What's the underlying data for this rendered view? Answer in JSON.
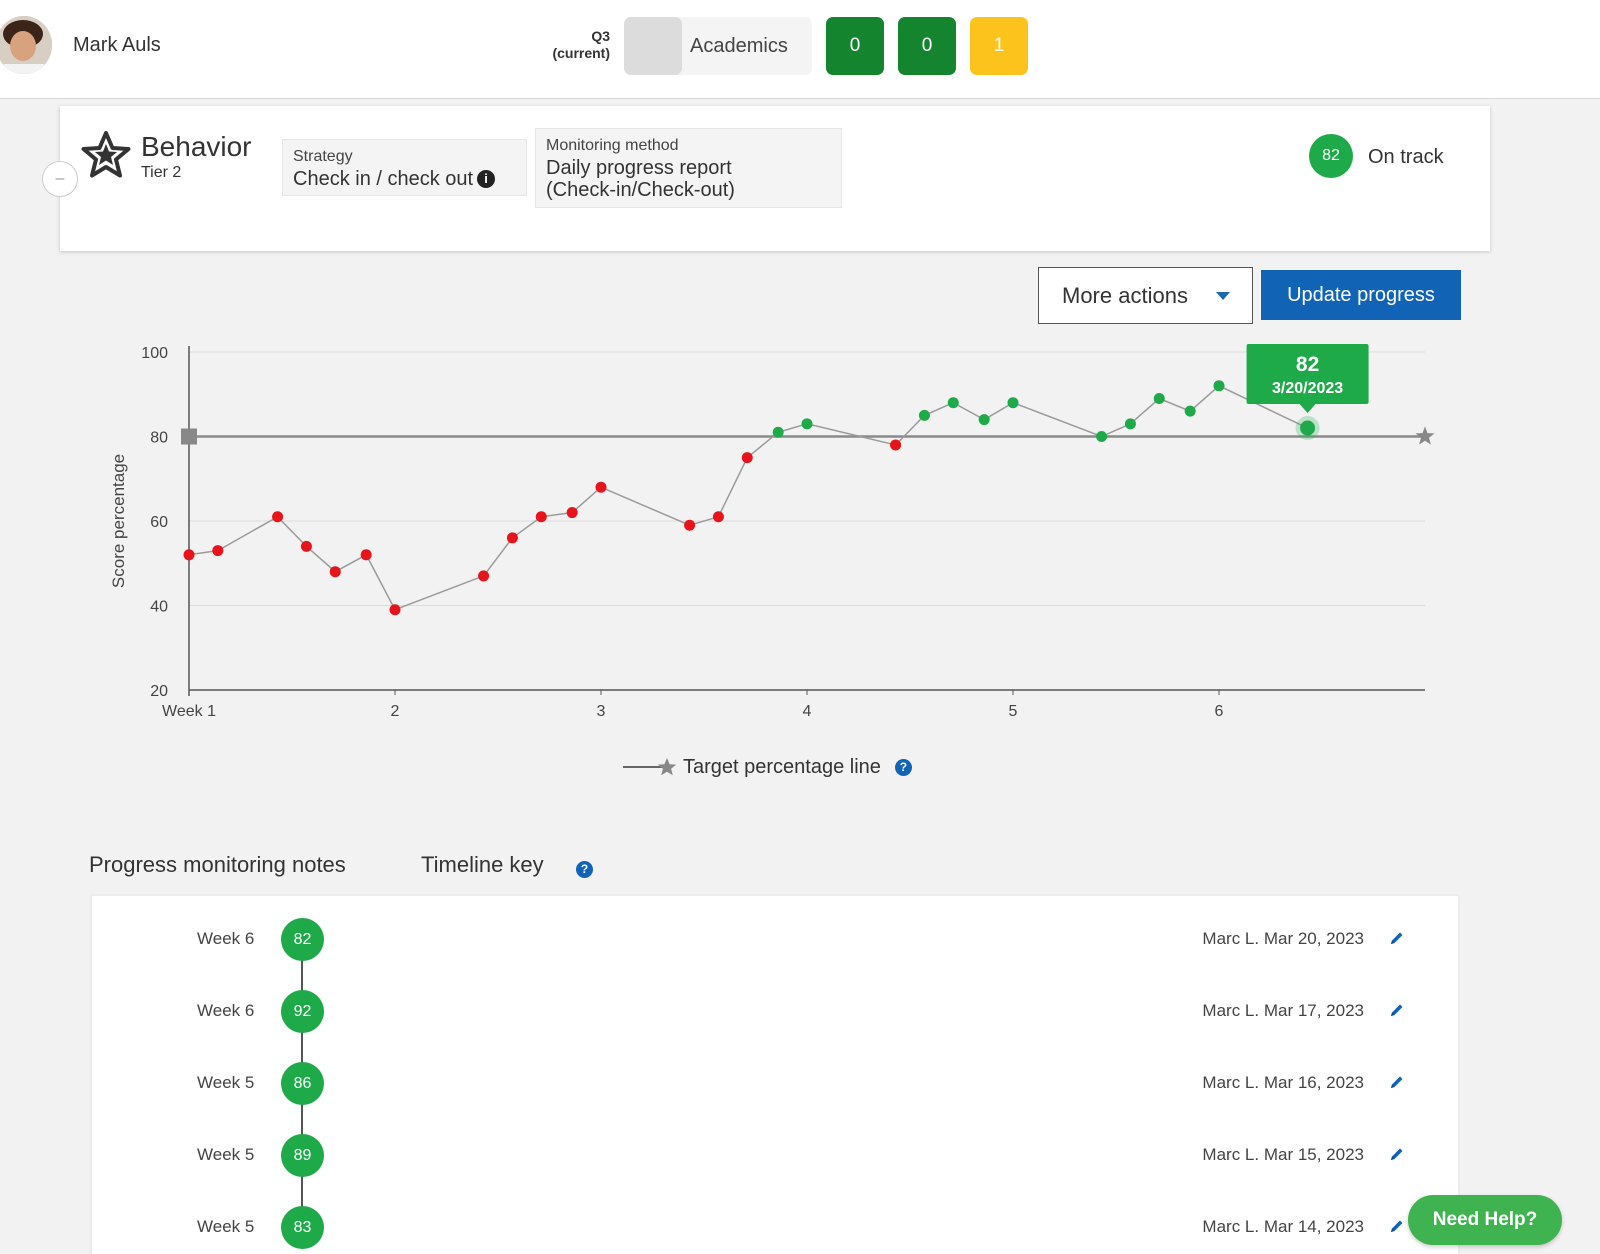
{
  "header": {
    "student_name": "Mark Auls",
    "quarter_line1": "Q3",
    "quarter_line2": "(current)",
    "academics_label": "Academics",
    "counts": [
      {
        "value": "0",
        "color": "#15842f"
      },
      {
        "value": "0",
        "color": "#15842f"
      },
      {
        "value": "1",
        "color": "#fbc31c"
      }
    ]
  },
  "intervention": {
    "collapse_label": "–",
    "title": "Behavior",
    "tier": "Tier 2",
    "strategy_caption": "Strategy",
    "strategy_value": "Check in / check out",
    "info_glyph": "i",
    "monitoring_caption": "Monitoring method",
    "monitoring_line1": "Daily progress report",
    "monitoring_line2": "(Check-in/Check-out)",
    "status_score": "82",
    "status_label": "On track"
  },
  "actions": {
    "more_actions": "More actions",
    "update_progress": "Update progress"
  },
  "chart_data": {
    "type": "line",
    "ylabel": "Score percentage",
    "xlabel": "",
    "ylim": [
      20,
      100
    ],
    "y_ticks": [
      "20",
      "40",
      "60",
      "80",
      "100"
    ],
    "x_ticks": [
      {
        "x": 1,
        "label": "Week 1"
      },
      {
        "x": 2,
        "label": "2"
      },
      {
        "x": 3,
        "label": "3"
      },
      {
        "x": 4,
        "label": "4"
      },
      {
        "x": 5,
        "label": "5"
      },
      {
        "x": 6,
        "label": "6"
      }
    ],
    "xlim": [
      1,
      7
    ],
    "target": 80,
    "grid": true,
    "on_track_color": "#1faa4a",
    "off_track_color": "#e8141b",
    "points": [
      {
        "x": 1.0,
        "y": 52
      },
      {
        "x": 1.14,
        "y": 53
      },
      {
        "x": 1.43,
        "y": 61
      },
      {
        "x": 1.57,
        "y": 54
      },
      {
        "x": 1.71,
        "y": 48
      },
      {
        "x": 1.86,
        "y": 52
      },
      {
        "x": 2.0,
        "y": 39
      },
      {
        "x": 2.43,
        "y": 47
      },
      {
        "x": 2.57,
        "y": 56
      },
      {
        "x": 2.71,
        "y": 61
      },
      {
        "x": 2.86,
        "y": 62
      },
      {
        "x": 3.0,
        "y": 68
      },
      {
        "x": 3.43,
        "y": 59
      },
      {
        "x": 3.57,
        "y": 61
      },
      {
        "x": 3.71,
        "y": 75
      },
      {
        "x": 3.86,
        "y": 81
      },
      {
        "x": 4.0,
        "y": 83
      },
      {
        "x": 4.43,
        "y": 78
      },
      {
        "x": 4.57,
        "y": 85
      },
      {
        "x": 4.71,
        "y": 88
      },
      {
        "x": 4.86,
        "y": 84
      },
      {
        "x": 5.0,
        "y": 88
      },
      {
        "x": 5.43,
        "y": 80
      },
      {
        "x": 5.57,
        "y": 83
      },
      {
        "x": 5.71,
        "y": 89
      },
      {
        "x": 5.86,
        "y": 86
      },
      {
        "x": 6.0,
        "y": 92
      },
      {
        "x": 6.43,
        "y": 82
      }
    ],
    "tooltip": {
      "value": "82",
      "date": "3/20/2023"
    },
    "legend": "Target percentage line"
  },
  "notes": {
    "title": "Progress monitoring notes",
    "timeline_key": "Timeline key",
    "help_glyph": "?",
    "items": [
      {
        "week": "Week 6",
        "score": "82",
        "meta": "Marc L. Mar 20, 2023"
      },
      {
        "week": "Week 6",
        "score": "92",
        "meta": "Marc L. Mar 17, 2023"
      },
      {
        "week": "Week 5",
        "score": "86",
        "meta": "Marc L. Mar 16, 2023"
      },
      {
        "week": "Week 5",
        "score": "89",
        "meta": "Marc L. Mar 15, 2023"
      },
      {
        "week": "Week 5",
        "score": "83",
        "meta": "Marc L. Mar 14, 2023"
      }
    ]
  },
  "help_button": "Need Help?"
}
